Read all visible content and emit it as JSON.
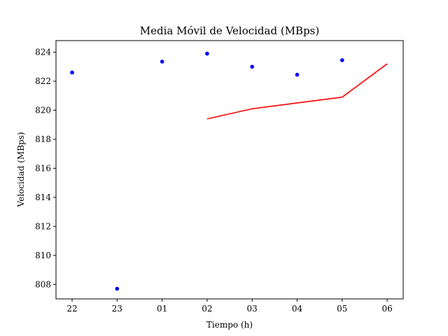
{
  "chart_data": {
    "type": "scatter+line",
    "title": "Media Móvil de Velocidad (MBps)",
    "xlabel": "Tiempo (h)",
    "ylabel": "Velocidad (MBps)",
    "categories": [
      "22",
      "23",
      "01",
      "02",
      "03",
      "04",
      "05",
      "06"
    ],
    "ylim": [
      807.0,
      824.8
    ],
    "yticks": [
      808,
      810,
      812,
      814,
      816,
      818,
      820,
      822,
      824
    ],
    "grid": false,
    "series": [
      {
        "kind": "scatter",
        "color": "#0000ff",
        "points": [
          {
            "x": "22",
            "y": 822.6
          },
          {
            "x": "23",
            "y": 807.7
          },
          {
            "x": "01",
            "y": 823.35
          },
          {
            "x": "02",
            "y": 823.9
          },
          {
            "x": "03",
            "y": 823.0
          },
          {
            "x": "04",
            "y": 822.45
          },
          {
            "x": "05",
            "y": 823.45
          }
        ]
      },
      {
        "kind": "line",
        "color": "#ff0000",
        "points": [
          {
            "x": "02",
            "y": 819.4
          },
          {
            "x": "03",
            "y": 820.1
          },
          {
            "x": "04",
            "y": 820.5
          },
          {
            "x": "05",
            "y": 820.9
          },
          {
            "x": "06",
            "y": 823.2
          }
        ]
      }
    ]
  }
}
